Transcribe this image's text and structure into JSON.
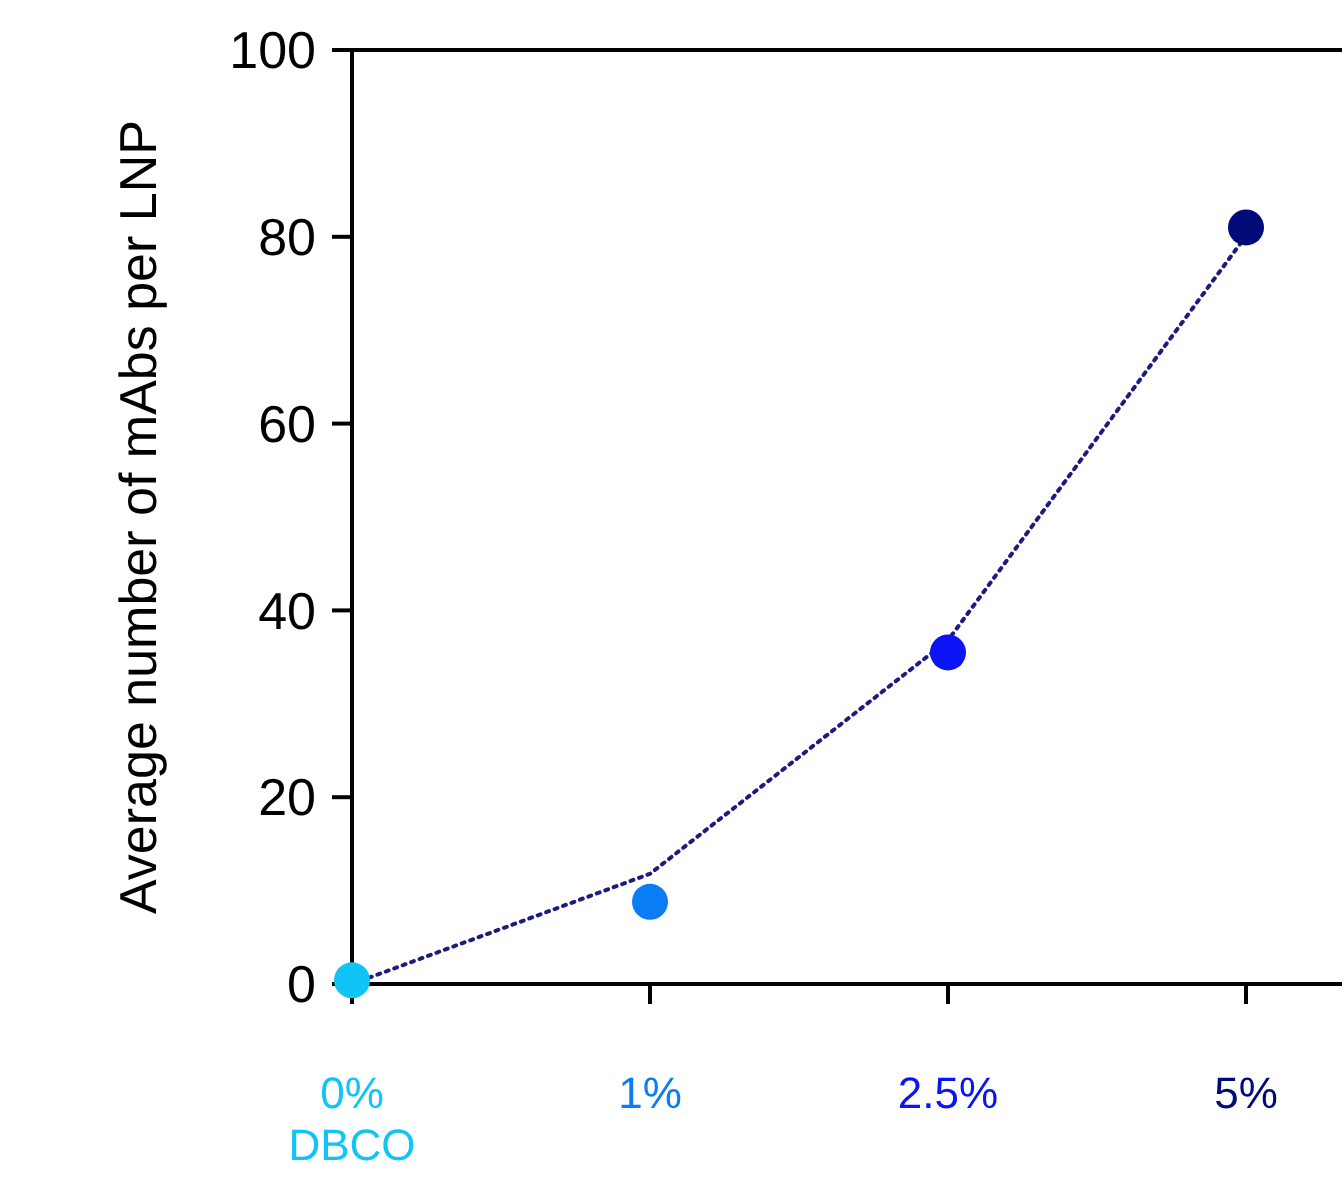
{
  "chart_data": {
    "type": "scatter",
    "ylabel": "Average number of mAbs per LNP",
    "categories": [
      "0% DBCO",
      "1%",
      "2.5%",
      "5%"
    ],
    "ylim": [
      0,
      100
    ],
    "yticks": [
      0,
      20,
      40,
      60,
      80,
      100
    ],
    "grid": false,
    "series": [
      {
        "marker": "circle",
        "colors": [
          "#10c4f8",
          "#0a7cf4",
          "#0a14f4",
          "#000a78"
        ],
        "values": [
          0.4,
          8.8,
          35.5,
          81
        ]
      },
      {
        "type": "line",
        "color": "#1c1c80",
        "line_style": "dotted",
        "values": [
          0,
          11.8,
          36.8,
          80.1
        ]
      }
    ]
  }
}
